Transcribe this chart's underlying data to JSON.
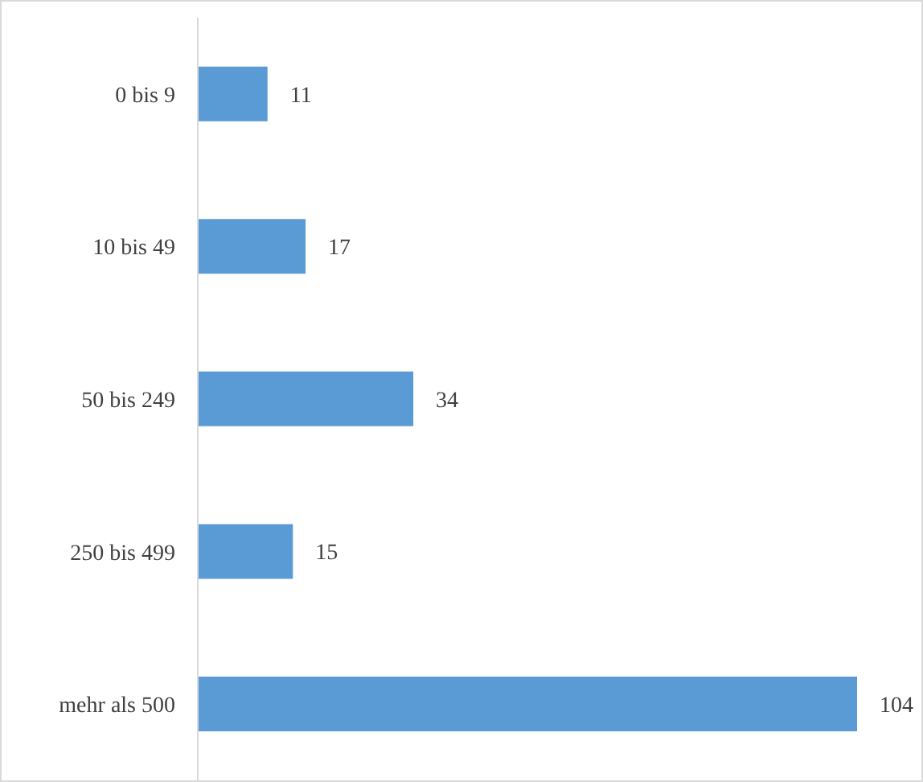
{
  "chart_data": {
    "type": "bar",
    "orientation": "horizontal",
    "categories": [
      "0 bis 9",
      "10 bis 49",
      "50 bis 249",
      "250 bis 499",
      "mehr als 500"
    ],
    "values": [
      11,
      17,
      34,
      15,
      104
    ],
    "color": "#5b9bd5",
    "data_labels": true,
    "grid": false,
    "legend": false
  }
}
